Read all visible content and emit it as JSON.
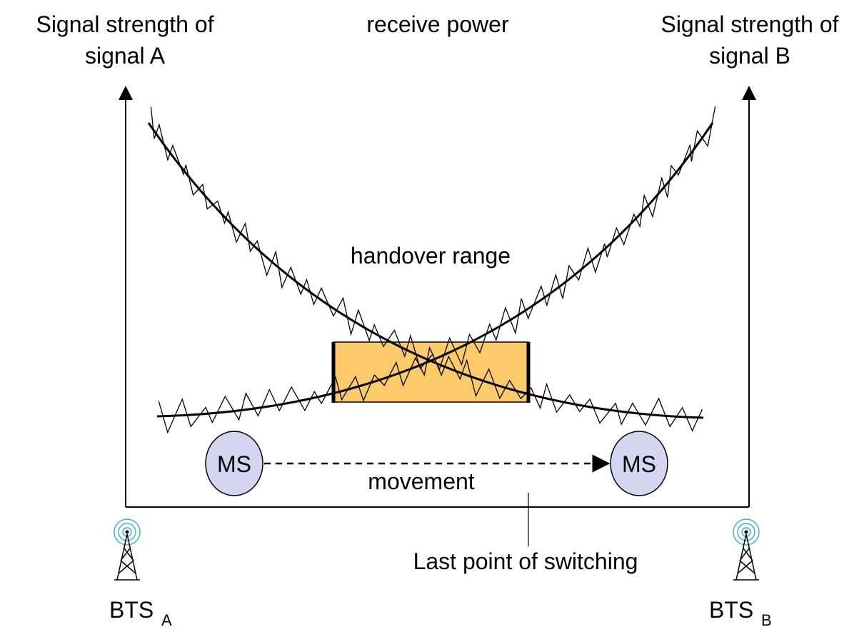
{
  "labels": {
    "signal_a_line1": "Signal strength of",
    "signal_a_line2": "signal A",
    "receive_power": "receive power",
    "signal_b_line1": "Signal strength of",
    "signal_b_line2": "signal B",
    "handover_range": "handover range",
    "movement": "movement",
    "last_point": "Last point of switching"
  },
  "mobile_stations": [
    {
      "label": "MS"
    },
    {
      "label": "MS"
    }
  ],
  "base_stations": [
    {
      "label": "BTS",
      "subscript": "A"
    },
    {
      "label": "BTS",
      "subscript": "B"
    }
  ],
  "colors": {
    "handover_box": "#fdca6a",
    "ms_fill": "#d5d5f2",
    "line": "#000000",
    "antenna_ring": "#3fb0d8"
  }
}
